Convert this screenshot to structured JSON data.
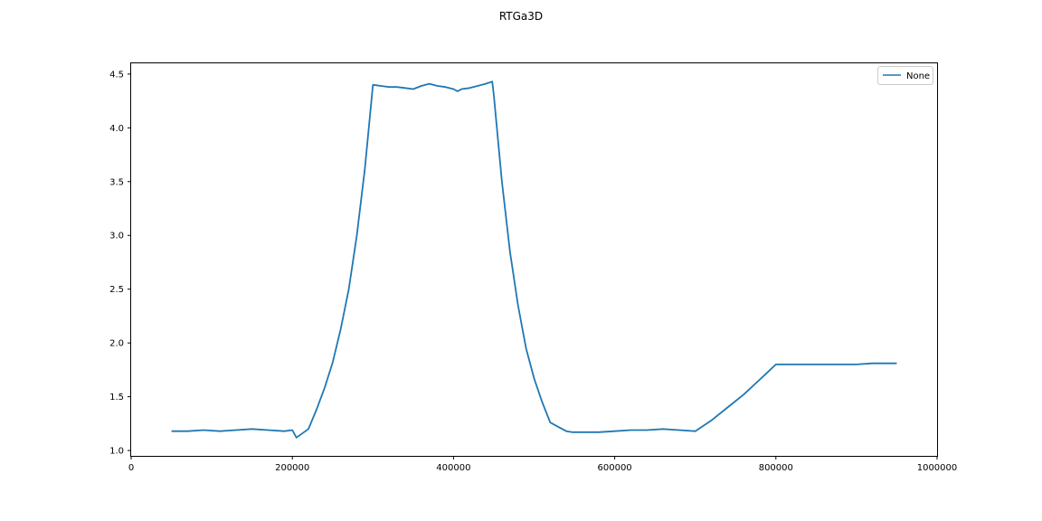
{
  "chart_data": {
    "type": "line",
    "title": "RTGa3D",
    "xlabel": "",
    "ylabel": "",
    "xlim": [
      0,
      1000000
    ],
    "ylim": [
      0.95,
      4.6
    ],
    "xticks": [
      0,
      200000,
      400000,
      600000,
      800000,
      1000000
    ],
    "xtick_labels": [
      "0",
      "200000",
      "400000",
      "600000",
      "800000",
      "1000000"
    ],
    "yticks": [
      1.0,
      1.5,
      2.0,
      2.5,
      3.0,
      3.5,
      4.0,
      4.5
    ],
    "ytick_labels": [
      "1.0",
      "1.5",
      "2.0",
      "2.5",
      "3.0",
      "3.5",
      "4.0",
      "4.5"
    ],
    "grid": false,
    "legend_position": "top-right",
    "colors": {
      "series": "#1f77b4",
      "axes": "#000000",
      "legend_border": "#cccccc"
    },
    "series": [
      {
        "name": "None",
        "x": [
          50000,
          70000,
          90000,
          110000,
          130000,
          150000,
          170000,
          190000,
          200000,
          205000,
          220000,
          230000,
          240000,
          250000,
          260000,
          270000,
          280000,
          290000,
          300000,
          310000,
          320000,
          330000,
          340000,
          350000,
          360000,
          370000,
          380000,
          390000,
          400000,
          405000,
          410000,
          420000,
          430000,
          440000,
          448000,
          450000,
          460000,
          470000,
          480000,
          490000,
          500000,
          510000,
          520000,
          530000,
          540000,
          547000,
          560000,
          580000,
          600000,
          620000,
          640000,
          660000,
          680000,
          700000,
          720000,
          740000,
          760000,
          780000,
          790000,
          800000,
          820000,
          840000,
          860000,
          880000,
          900000,
          920000,
          940000,
          950000
        ],
        "y": [
          1.18,
          1.18,
          1.19,
          1.18,
          1.19,
          1.2,
          1.19,
          1.18,
          1.19,
          1.12,
          1.2,
          1.38,
          1.58,
          1.82,
          2.13,
          2.5,
          3.0,
          3.62,
          4.4,
          4.39,
          4.38,
          4.38,
          4.37,
          4.36,
          4.39,
          4.41,
          4.39,
          4.38,
          4.36,
          4.34,
          4.36,
          4.37,
          4.39,
          4.41,
          4.43,
          4.3,
          3.5,
          2.85,
          2.35,
          1.95,
          1.67,
          1.45,
          1.26,
          1.22,
          1.18,
          1.17,
          1.17,
          1.17,
          1.18,
          1.19,
          1.19,
          1.2,
          1.19,
          1.18,
          1.28,
          1.4,
          1.52,
          1.66,
          1.73,
          1.8,
          1.8,
          1.8,
          1.8,
          1.8,
          1.8,
          1.81,
          1.81,
          1.81
        ]
      }
    ]
  }
}
